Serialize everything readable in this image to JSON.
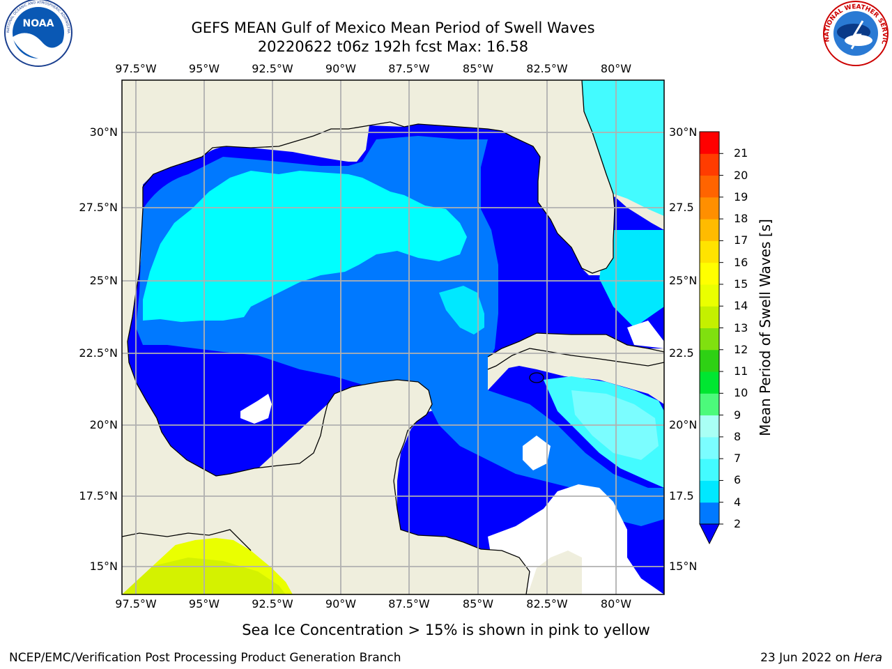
{
  "header": {
    "title_line1": "GEFS MEAN Gulf of Mexico Mean Period of Swell Waves",
    "title_line2": "20220622 t06z 192h fcst   Max: 16.58"
  },
  "logos": {
    "noaa_text": "NOAA",
    "noaa_ring_text": "NATIONAL OCEANIC AND ATMOSPHERIC ADMINISTRATION · U.S. DEPARTMENT OF COMMERCE",
    "nws_ring_text": "NATIONAL WEATHER SERVICE"
  },
  "map": {
    "lon_ticks": [
      "97.5°W",
      "95°W",
      "92.5°W",
      "90°W",
      "87.5°W",
      "85°W",
      "82.5°W",
      "80°W"
    ],
    "lat_ticks_left": [
      "30°N",
      "27.5°N",
      "25°N",
      "22.5°N",
      "20°N",
      "17.5°N",
      "15°N"
    ],
    "lat_ticks_right": [
      "30°N",
      "27.5",
      "25°N",
      "22.5",
      "20°N",
      "17.5",
      "15°N"
    ],
    "colors": {
      "land": "#efeedd",
      "grid": "#b0b0b0"
    }
  },
  "colorbar": {
    "label": "Mean Period of Swell Waves [s]",
    "ticks": [
      "2",
      "4",
      "6",
      "7",
      "8",
      "9",
      "10",
      "11",
      "12",
      "13",
      "14",
      "15",
      "16",
      "17",
      "18",
      "19",
      "20",
      "21"
    ],
    "colors": [
      "#0079ff",
      "#00e8ff",
      "#43fbff",
      "#7bfdff",
      "#a9fff5",
      "#4cfa7b",
      "#00e631",
      "#2ed114",
      "#80e00f",
      "#c4f000",
      "#eaff00",
      "#ffff00",
      "#ffe300",
      "#ffbb00",
      "#ff8f00",
      "#ff6400",
      "#ff3c00",
      "#ff0000"
    ],
    "under_color": "#0000ff"
  },
  "footer": {
    "caption": "Sea Ice Concentration > 15% is shown in pink to yellow",
    "credit": "NCEP/EMC/Verification Post Processing Product Generation Branch",
    "date_prefix": "23 Jun 2022 on",
    "host": "Hera"
  }
}
